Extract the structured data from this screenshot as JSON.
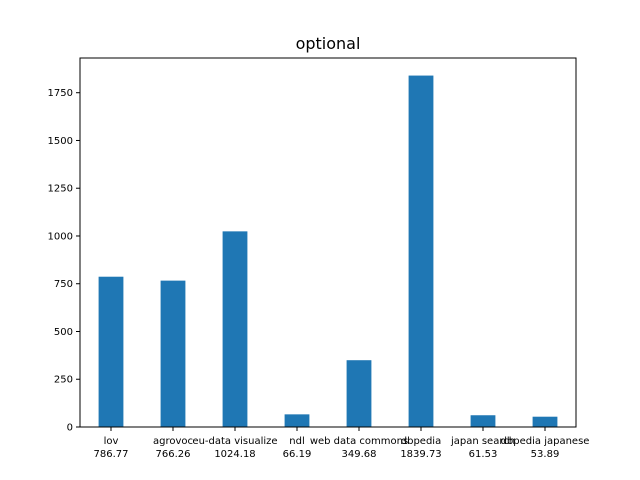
{
  "chart_data": {
    "type": "bar",
    "title": "optional",
    "xlabel": "",
    "ylabel": "",
    "categories": [
      "lov",
      "agrovoc",
      "eu-data visualize",
      "ndl",
      "web data commons",
      "dbpedia",
      "japan search",
      "dbpedia japanese"
    ],
    "values": [
      786.77,
      766.26,
      1024.18,
      66.19,
      349.68,
      1839.73,
      61.53,
      53.89
    ],
    "value_labels": [
      "786.77",
      "766.26",
      "1024.18",
      "66.19",
      "349.68",
      "1839.73",
      "61.53",
      "53.89"
    ],
    "ylim": [
      0,
      1931.72
    ],
    "yticks": [
      0,
      250,
      500,
      750,
      1000,
      1250,
      1500,
      1750
    ],
    "grid": false,
    "bar_color": "#1f77b4"
  }
}
